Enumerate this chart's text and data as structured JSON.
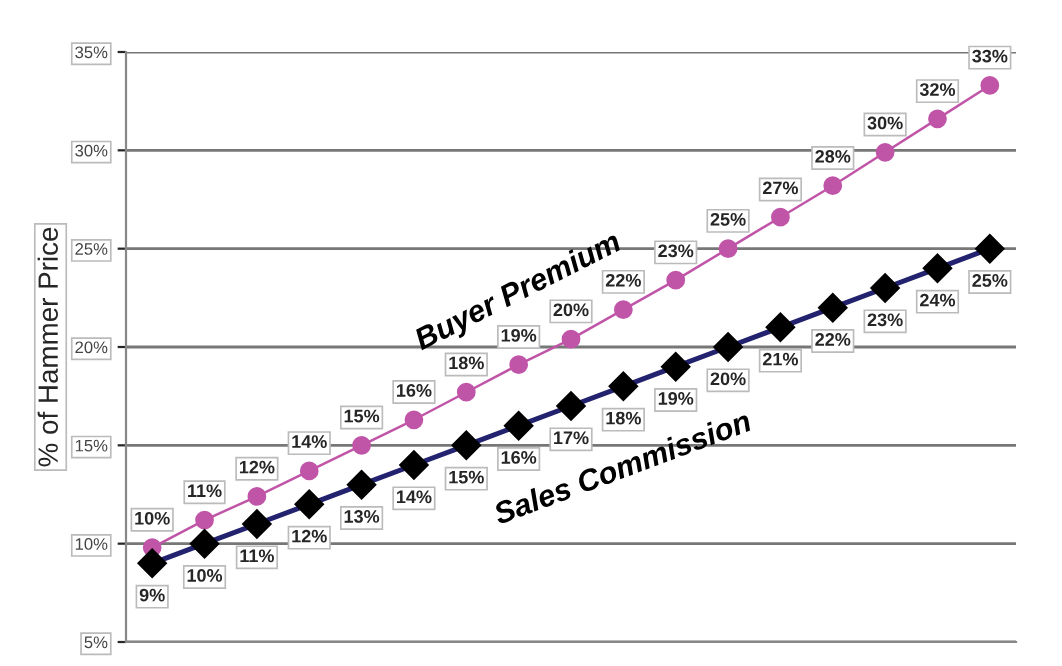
{
  "chart_data": {
    "type": "line",
    "ylabel": "% of Hammer Price",
    "categories": [
      null,
      null,
      null,
      null,
      null,
      null,
      null,
      null,
      null,
      null,
      null,
      null,
      null,
      null,
      null,
      null,
      null
    ],
    "series": [
      {
        "name": "Buyer Premium",
        "color": "#c055a8",
        "marker": "circle",
        "values": [
          9.8,
          11.2,
          12.4,
          13.7,
          15.0,
          16.3,
          17.7,
          19.1,
          20.4,
          21.9,
          23.4,
          25.0,
          26.6,
          28.2,
          29.9,
          31.6,
          33.3
        ],
        "value_labels": [
          "10%",
          "11%",
          "12%",
          "14%",
          "15%",
          "16%",
          "18%",
          "19%",
          "20%",
          "22%",
          "23%",
          "25%",
          "27%",
          "28%",
          "30%",
          "32%",
          "33%"
        ]
      },
      {
        "name": "Sales Commission",
        "color": "#22226e",
        "marker": "diamond",
        "values": [
          9,
          10,
          11,
          12,
          13,
          14,
          15,
          16,
          17,
          18,
          19,
          20,
          21,
          22,
          23,
          24,
          25
        ],
        "value_labels": [
          "9%",
          "10%",
          "11%",
          "12%",
          "13%",
          "14%",
          "15%",
          "16%",
          "17%",
          "18%",
          "19%",
          "20%",
          "21%",
          "22%",
          "23%",
          "24%",
          "25%"
        ]
      }
    ],
    "ylim": [
      5,
      35
    ],
    "yticks": [
      {
        "value": 5,
        "label": "5%"
      },
      {
        "value": 10,
        "label": "10%"
      },
      {
        "value": 15,
        "label": "15%"
      },
      {
        "value": 20,
        "label": "20%"
      },
      {
        "value": 25,
        "label": "25%"
      },
      {
        "value": 30,
        "label": "30%"
      },
      {
        "value": 35,
        "label": "35%"
      }
    ],
    "grid": "y",
    "legend": false,
    "line_style": "solid"
  }
}
